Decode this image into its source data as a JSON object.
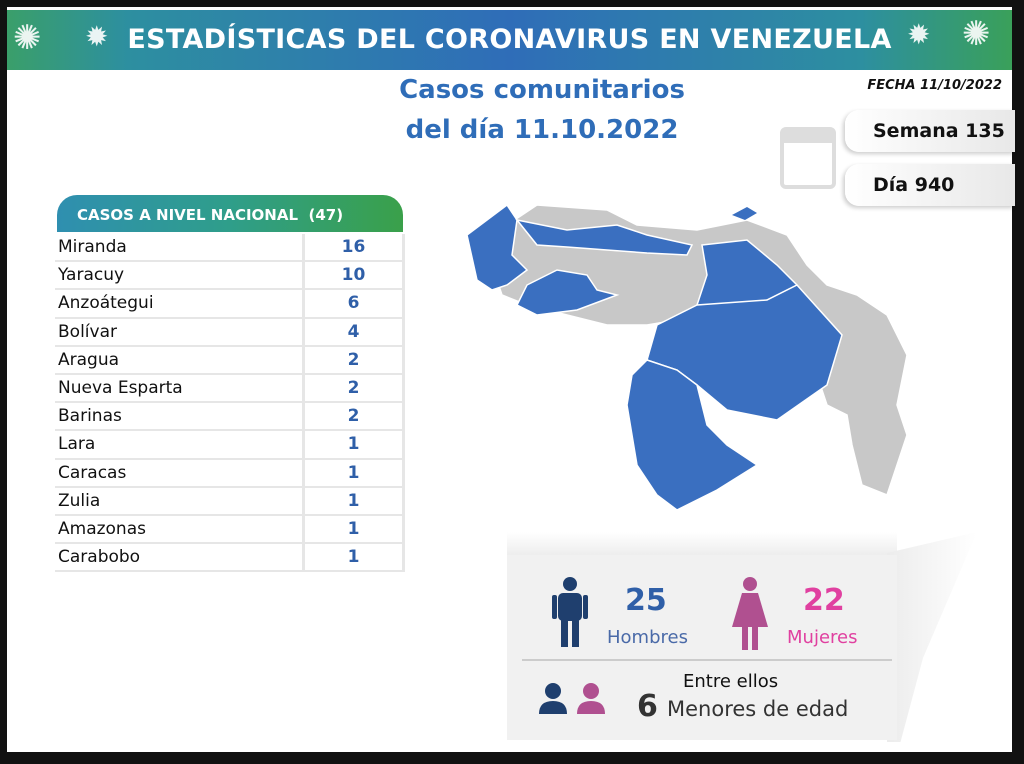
{
  "header": {
    "title": "ESTADÍSTICAS DEL CORONAVIRUS EN VENEZUELA",
    "fecha": "FECHA 11/10/2022"
  },
  "subtitle": {
    "line1": "Casos comunitarios",
    "line2": "del día 11.10.2022"
  },
  "calendar": {
    "semana": "Semana 135",
    "dia": "Día 940",
    "icon": "calendar-icon"
  },
  "table": {
    "title": "CASOS A NIVEL NACIONAL",
    "total": "(47)",
    "rows": [
      {
        "state": "Miranda",
        "cases": "16"
      },
      {
        "state": "Yaracuy",
        "cases": "10"
      },
      {
        "state": "Anzoátegui",
        "cases": "6"
      },
      {
        "state": "Bolívar",
        "cases": "4"
      },
      {
        "state": "Aragua",
        "cases": "2"
      },
      {
        "state": "Nueva Esparta",
        "cases": "2"
      },
      {
        "state": "Barinas",
        "cases": "2"
      },
      {
        "state": "Lara",
        "cases": "1"
      },
      {
        "state": "Caracas",
        "cases": "1"
      },
      {
        "state": "Zulia",
        "cases": "1"
      },
      {
        "state": "Amazonas",
        "cases": "1"
      },
      {
        "state": "Carabobo",
        "cases": "1"
      }
    ]
  },
  "gender": {
    "men_count": "25",
    "men_label": "Hombres",
    "women_count": "22",
    "women_label": "Mujeres",
    "between": "Entre ellos",
    "minors_count": "6",
    "minors_label": "Menores de edad"
  },
  "colors": {
    "blue": "#2f6db8",
    "men": "#1f3f6e",
    "women": "#b05090",
    "women_text": "#e040a0",
    "map_gray": "#c8c8c8",
    "map_blue": "#3a6fc0"
  }
}
